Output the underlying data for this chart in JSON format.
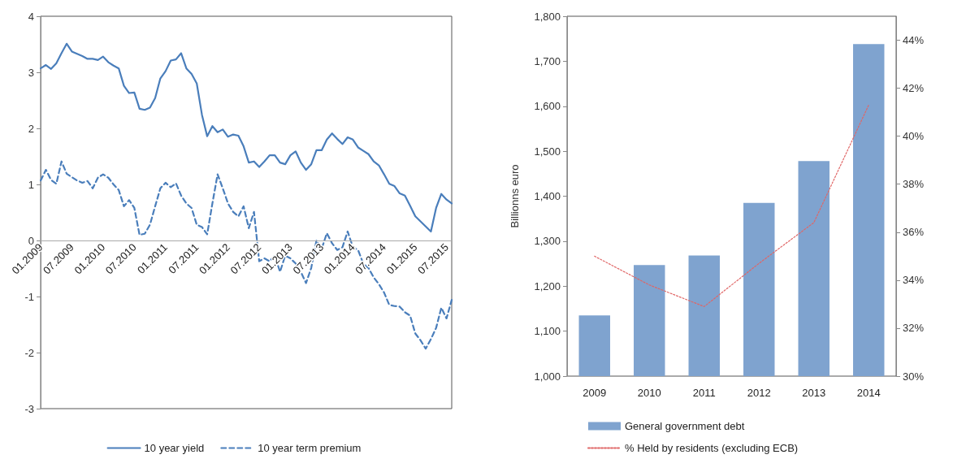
{
  "chart_data": [
    {
      "type": "line",
      "categories": [
        "01.2009",
        null,
        null,
        null,
        null,
        null,
        "07.2009",
        null,
        null,
        null,
        null,
        null,
        "01.2010",
        null,
        null,
        null,
        null,
        null,
        "07.2010",
        null,
        null,
        null,
        null,
        null,
        "01.2011",
        null,
        null,
        null,
        null,
        null,
        "07.2011",
        null,
        null,
        null,
        null,
        null,
        "01.2012",
        null,
        null,
        null,
        null,
        null,
        "07.2012",
        null,
        null,
        null,
        null,
        null,
        "01.2013",
        null,
        null,
        null,
        null,
        null,
        "07.2013",
        null,
        null,
        null,
        null,
        null,
        "01.2014",
        null,
        null,
        null,
        null,
        null,
        "07.2014",
        null,
        null,
        null,
        null,
        null,
        "01.2015",
        null,
        null,
        null,
        null,
        null,
        "07.2015",
        null
      ],
      "series": [
        {
          "name": "10 year yield",
          "color": "#4a7ebb",
          "line_style": "solid",
          "values": [
            3.07,
            3.13,
            3.06,
            3.16,
            3.34,
            3.51,
            3.37,
            3.33,
            3.29,
            3.24,
            3.24,
            3.22,
            3.28,
            3.18,
            3.12,
            3.07,
            2.76,
            2.63,
            2.64,
            2.35,
            2.33,
            2.37,
            2.54,
            2.89,
            3.02,
            3.21,
            3.23,
            3.34,
            3.07,
            2.97,
            2.8,
            2.24,
            1.86,
            2.04,
            1.93,
            1.98,
            1.85,
            1.89,
            1.87,
            1.68,
            1.39,
            1.41,
            1.31,
            1.41,
            1.52,
            1.52,
            1.39,
            1.36,
            1.52,
            1.59,
            1.39,
            1.26,
            1.36,
            1.61,
            1.61,
            1.8,
            1.91,
            1.81,
            1.72,
            1.84,
            1.8,
            1.66,
            1.6,
            1.54,
            1.41,
            1.34,
            1.18,
            1.01,
            0.97,
            0.84,
            0.8,
            0.62,
            0.43,
            0.34,
            0.25,
            0.16,
            0.58,
            0.83,
            0.73,
            0.66
          ]
        },
        {
          "name": "10 year term premium",
          "color": "#4a7ebb",
          "line_style": "dashed",
          "values": [
            1.07,
            1.26,
            1.08,
            1.01,
            1.41,
            1.19,
            1.13,
            1.07,
            1.03,
            1.06,
            0.93,
            1.12,
            1.18,
            1.12,
            1.0,
            0.9,
            0.61,
            0.72,
            0.58,
            0.1,
            0.12,
            0.28,
            0.61,
            0.93,
            1.03,
            0.95,
            1.02,
            0.8,
            0.66,
            0.58,
            0.28,
            0.24,
            0.11,
            0.66,
            1.18,
            0.93,
            0.66,
            0.51,
            0.43,
            0.61,
            0.22,
            0.51,
            -0.37,
            -0.32,
            -0.37,
            -0.27,
            -0.56,
            -0.27,
            -0.32,
            -0.41,
            -0.56,
            -0.76,
            -0.49,
            0.0,
            -0.15,
            0.13,
            -0.05,
            -0.17,
            -0.12,
            0.16,
            -0.12,
            -0.17,
            -0.41,
            -0.49,
            -0.66,
            -0.78,
            -0.93,
            -1.15,
            -1.17,
            -1.18,
            -1.28,
            -1.34,
            -1.66,
            -1.78,
            -1.93,
            -1.76,
            -1.56,
            -1.2,
            -1.39,
            -1.06
          ]
        }
      ],
      "ylim": [
        -3,
        4
      ],
      "yticks": [
        -3,
        -2,
        -1,
        0,
        1,
        2,
        3,
        4
      ],
      "marker": "none",
      "grid": false,
      "legend": "bottom"
    },
    {
      "type": "bar",
      "categories": [
        "2009",
        "2010",
        "2011",
        "2012",
        "2013",
        "2014"
      ],
      "series": [
        {
          "name": "General government debt",
          "color": "#7fa3cf",
          "values": [
            1135,
            1247,
            1268,
            1385,
            1478,
            1738
          ]
        },
        {
          "name": "% Held by residents (excluding ECB)",
          "type": "line",
          "axis": "y2",
          "color": "#e06666",
          "line_style": "dotted",
          "values": [
            35.0,
            33.8,
            32.9,
            34.7,
            36.4,
            41.3
          ]
        }
      ],
      "ylabel": "Billionns euro",
      "ylim": [
        1000,
        1800
      ],
      "yticks": [
        {
          "value": 1000,
          "label": "1,000"
        },
        {
          "value": 1100,
          "label": "1,100"
        },
        {
          "value": 1200,
          "label": "1,200"
        },
        {
          "value": 1300,
          "label": "1,300"
        },
        {
          "value": 1400,
          "label": "1,400"
        },
        {
          "value": 1500,
          "label": "1,500"
        },
        {
          "value": 1600,
          "label": "1,600"
        },
        {
          "value": 1700,
          "label": "1,700"
        },
        {
          "value": 1800,
          "label": "1,800"
        }
      ],
      "y2lim": [
        30,
        45
      ],
      "y2ticks": [
        {
          "value": 30,
          "label": "30%"
        },
        {
          "value": 32,
          "label": "32%"
        },
        {
          "value": 34,
          "label": "34%"
        },
        {
          "value": 36,
          "label": "36%"
        },
        {
          "value": 38,
          "label": "38%"
        },
        {
          "value": 40,
          "label": "40%"
        },
        {
          "value": 42,
          "label": "42%"
        },
        {
          "value": 44,
          "label": "44%"
        }
      ],
      "marker": "none",
      "grid": false,
      "legend": "bottom left"
    }
  ]
}
